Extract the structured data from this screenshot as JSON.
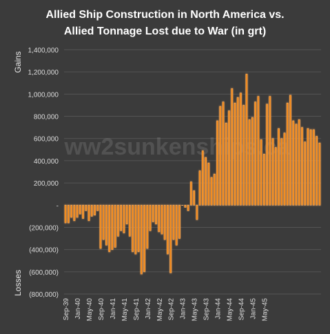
{
  "chart_data": {
    "type": "bar",
    "title_line1": "Allied Ship Construction in North America vs.",
    "title_line2": "Allied Tonnage Lost due to War (in grt)",
    "ylabel_top": "Gains",
    "ylabel_bottom": "Losses",
    "watermark": "ww2sunkenships.ca",
    "ylim": [
      -800000,
      1400000
    ],
    "ytick_values": [
      1400000,
      1200000,
      1000000,
      800000,
      600000,
      400000,
      200000,
      0,
      -200000,
      -400000,
      -600000,
      -800000
    ],
    "ytick_labels": [
      "1,400,000",
      "1,200,000",
      "1,000,000",
      "800,000",
      "600,000",
      "400,000",
      "200,000",
      "-",
      "(200,000)",
      "(400,000)",
      "(600,000)",
      "(800,000)"
    ],
    "xtick_labels": [
      "Sep-39",
      "Jan-40",
      "May-40",
      "Sep-40",
      "Jan-41",
      "May-41",
      "Sep-41",
      "Jan-42",
      "May-42",
      "Sep-42",
      "Jan-43",
      "May-43",
      "Sep-43",
      "Jan-44",
      "May-44",
      "Sep-44",
      "Jan-45",
      "May-45"
    ],
    "values": [
      -160000,
      -160000,
      -110000,
      -140000,
      -110000,
      -80000,
      -120000,
      -50000,
      -140000,
      -100000,
      -90000,
      -50000,
      -390000,
      -310000,
      -360000,
      -420000,
      -400000,
      -380000,
      -280000,
      -230000,
      -250000,
      -170000,
      -280000,
      -420000,
      -440000,
      -420000,
      -620000,
      -600000,
      -390000,
      -230000,
      -150000,
      -170000,
      -240000,
      -260000,
      -310000,
      -440000,
      -610000,
      -310000,
      -360000,
      -300000,
      0,
      -20000,
      -50000,
      210000,
      130000,
      -130000,
      310000,
      490000,
      430000,
      380000,
      250000,
      280000,
      760000,
      890000,
      930000,
      740000,
      850000,
      1050000,
      920000,
      970000,
      1010000,
      900000,
      1180000,
      770000,
      790000,
      930000,
      980000,
      590000,
      460000,
      910000,
      980000,
      600000,
      520000,
      690000,
      600000,
      650000,
      920000,
      990000,
      760000,
      730000,
      770000,
      700000,
      570000,
      690000,
      680000,
      680000,
      620000,
      560000
    ],
    "bar_color": "#f0820a",
    "bar_glow_color": "#f8b066",
    "grid": true,
    "legend": "none"
  }
}
